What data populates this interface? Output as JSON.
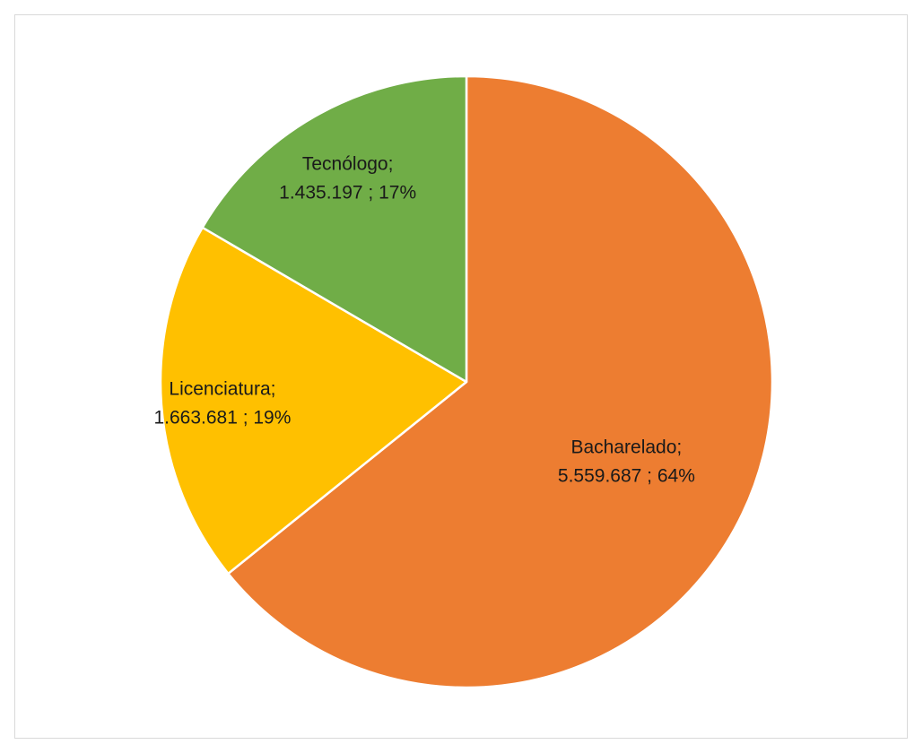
{
  "chart_data": {
    "type": "pie",
    "title": "",
    "start_angle_deg": 0,
    "direction": "clockwise",
    "slices": [
      {
        "label": "Bacharelado",
        "value": 5559687,
        "value_text": "5.559.687",
        "percent_text": "64%",
        "color": "#ED7D31"
      },
      {
        "label": "Licenciatura",
        "value": 1663681,
        "value_text": "1.663.681",
        "percent_text": "19%",
        "color": "#FFC000"
      },
      {
        "label": "Tecnólogo",
        "value": 1435197,
        "value_text": "1.435.197",
        "percent_text": "17%",
        "color": "#70AD47"
      }
    ],
    "slice_border_color": "#ffffff",
    "legend": "none"
  }
}
